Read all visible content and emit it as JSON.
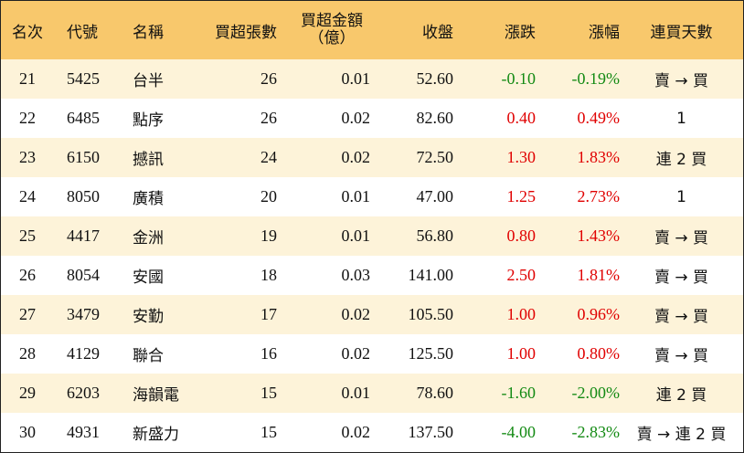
{
  "headers": [
    "名次",
    "代號",
    "名稱",
    "買超張數",
    "買超金額",
    "（億）",
    "收盤",
    "漲跌",
    "漲幅",
    "連買天數"
  ],
  "colors": {
    "header_bg": "#f8c86c",
    "row_alt_bg": "#fdf3d9",
    "up": "#e00000",
    "down": "#138a13"
  },
  "rows": [
    {
      "rank": "21",
      "code": "5425",
      "name": "台半",
      "lots": "26",
      "amount": "0.01",
      "close": "52.60",
      "change": "-0.10",
      "pct": "-0.19%",
      "streak": "賣 → 買",
      "dir": "down"
    },
    {
      "rank": "22",
      "code": "6485",
      "name": "點序",
      "lots": "26",
      "amount": "0.02",
      "close": "82.60",
      "change": "0.40",
      "pct": "0.49%",
      "streak": "1",
      "dir": "up"
    },
    {
      "rank": "23",
      "code": "6150",
      "name": "撼訊",
      "lots": "24",
      "amount": "0.02",
      "close": "72.50",
      "change": "1.30",
      "pct": "1.83%",
      "streak": "連 2 買",
      "dir": "up"
    },
    {
      "rank": "24",
      "code": "8050",
      "name": "廣積",
      "lots": "20",
      "amount": "0.01",
      "close": "47.00",
      "change": "1.25",
      "pct": "2.73%",
      "streak": "1",
      "dir": "up"
    },
    {
      "rank": "25",
      "code": "4417",
      "name": "金洲",
      "lots": "19",
      "amount": "0.01",
      "close": "56.80",
      "change": "0.80",
      "pct": "1.43%",
      "streak": "賣 → 買",
      "dir": "up"
    },
    {
      "rank": "26",
      "code": "8054",
      "name": "安國",
      "lots": "18",
      "amount": "0.03",
      "close": "141.00",
      "change": "2.50",
      "pct": "1.81%",
      "streak": "賣 → 買",
      "dir": "up"
    },
    {
      "rank": "27",
      "code": "3479",
      "name": "安勤",
      "lots": "17",
      "amount": "0.02",
      "close": "105.50",
      "change": "1.00",
      "pct": "0.96%",
      "streak": "賣 → 買",
      "dir": "up"
    },
    {
      "rank": "28",
      "code": "4129",
      "name": "聯合",
      "lots": "16",
      "amount": "0.02",
      "close": "125.50",
      "change": "1.00",
      "pct": "0.80%",
      "streak": "賣 → 買",
      "dir": "up"
    },
    {
      "rank": "29",
      "code": "6203",
      "name": "海韻電",
      "lots": "15",
      "amount": "0.01",
      "close": "78.60",
      "change": "-1.60",
      "pct": "-2.00%",
      "streak": "連 2 買",
      "dir": "down"
    },
    {
      "rank": "30",
      "code": "4931",
      "name": "新盛力",
      "lots": "15",
      "amount": "0.02",
      "close": "137.50",
      "change": "-4.00",
      "pct": "-2.83%",
      "streak": "賣 → 連 2 買",
      "dir": "down"
    }
  ]
}
